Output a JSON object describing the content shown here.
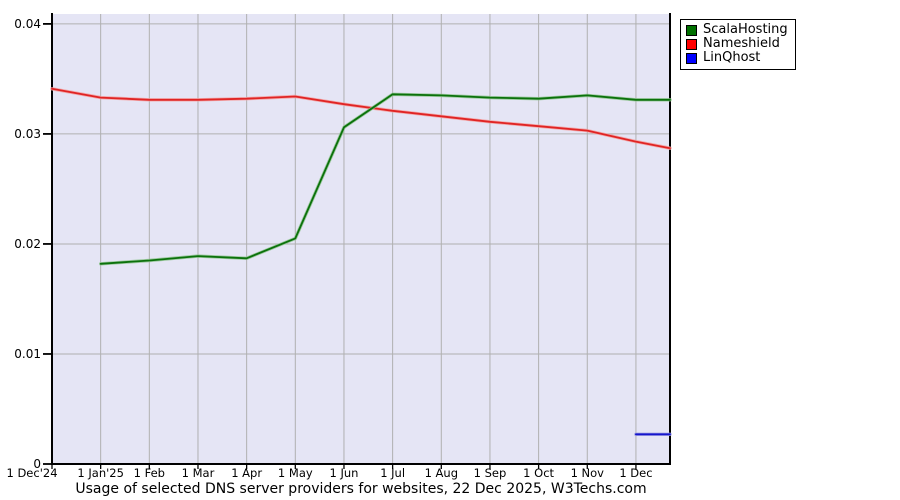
{
  "chart_data": {
    "type": "line",
    "title": "Usage of selected DNS server providers for websites, 22 Dec 2025, W3Techs.com",
    "xlabel": "",
    "ylabel": "",
    "x_unit": "months since 1 Dec 2024 (12.7 = 22 Dec 2025)",
    "x_tick_labels": [
      "1 Dec'24",
      "1 Jan'25",
      "1 Feb",
      "1 Mar",
      "1 Apr",
      "1 May",
      "1 Jun",
      "1 Jul",
      "1 Aug",
      "1 Sep",
      "1 Oct",
      "1 Nov",
      "1 Dec"
    ],
    "y_ticks": [
      {
        "value": 0,
        "label": "0"
      },
      {
        "value": 0.01,
        "label": "0.01"
      },
      {
        "value": 0.02,
        "label": "0.02"
      },
      {
        "value": 0.03,
        "label": "0.03"
      },
      {
        "value": 0.04,
        "label": "0.04"
      }
    ],
    "ylim": [
      0,
      0.0409
    ],
    "xlim": [
      0,
      12.7
    ],
    "grid": true,
    "legend_position": "top-right-outside",
    "colors": {
      "plot_background": "#e5e5f5",
      "grid": "#b0b0b0",
      "axis": "#000000",
      "legend_border": "#000000",
      "legend_background": "#ffffff"
    },
    "series": [
      {
        "name": "ScalaHosting",
        "color": "#0b710b",
        "swatch": "#007000",
        "halo": "#8fc48f",
        "points": [
          [
            1,
            0.0182
          ],
          [
            2,
            0.0185
          ],
          [
            3,
            0.0189
          ],
          [
            4,
            0.0187
          ],
          [
            5,
            0.0205
          ],
          [
            6,
            0.0306
          ],
          [
            7,
            0.0336
          ],
          [
            8,
            0.0335
          ],
          [
            9,
            0.0333
          ],
          [
            10,
            0.0332
          ],
          [
            11,
            0.0335
          ],
          [
            12,
            0.0331
          ],
          [
            12.7,
            0.0331
          ]
        ]
      },
      {
        "name": "Nameshield",
        "color": "#e02424",
        "swatch": "#ff0000",
        "halo": "#f4a0a0",
        "points": [
          [
            0,
            0.0341
          ],
          [
            1,
            0.0333
          ],
          [
            2,
            0.0331
          ],
          [
            3,
            0.0331
          ],
          [
            4,
            0.0332
          ],
          [
            5,
            0.0334
          ],
          [
            6,
            0.0327
          ],
          [
            7,
            0.0321
          ],
          [
            8,
            0.0316
          ],
          [
            9,
            0.0311
          ],
          [
            10,
            0.0307
          ],
          [
            11,
            0.0303
          ],
          [
            12,
            0.0293
          ],
          [
            12.7,
            0.0287
          ]
        ]
      },
      {
        "name": "LinQhost",
        "color": "#1515cc",
        "swatch": "#0000ff",
        "halo": "#9a9ae0",
        "points": [
          [
            12,
            0.0027
          ],
          [
            12.7,
            0.0027
          ]
        ]
      }
    ]
  }
}
